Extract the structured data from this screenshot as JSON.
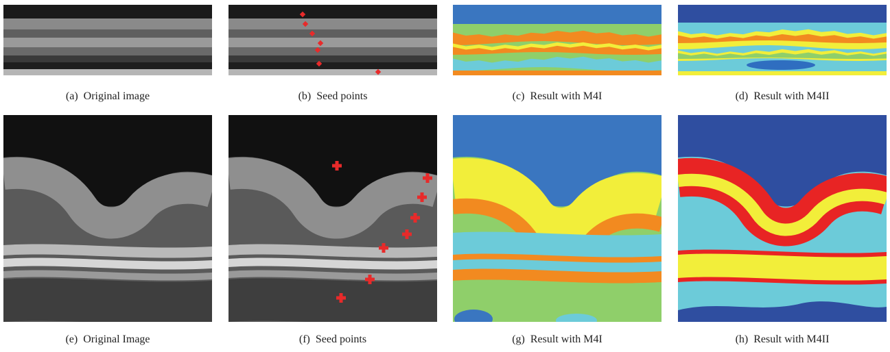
{
  "panels": [
    {
      "label": "(a)",
      "caption": "Original image"
    },
    {
      "label": "(b)",
      "caption": "Seed points"
    },
    {
      "label": "(c)",
      "caption": "Result with M4I"
    },
    {
      "label": "(d)",
      "caption": "Result with M4II"
    },
    {
      "label": "(e)",
      "caption": "Original Image"
    },
    {
      "label": "(f)",
      "caption": "Seed points"
    },
    {
      "label": "(g)",
      "caption": "Result with M4I"
    },
    {
      "label": "(h)",
      "caption": "Result with M4II"
    }
  ]
}
